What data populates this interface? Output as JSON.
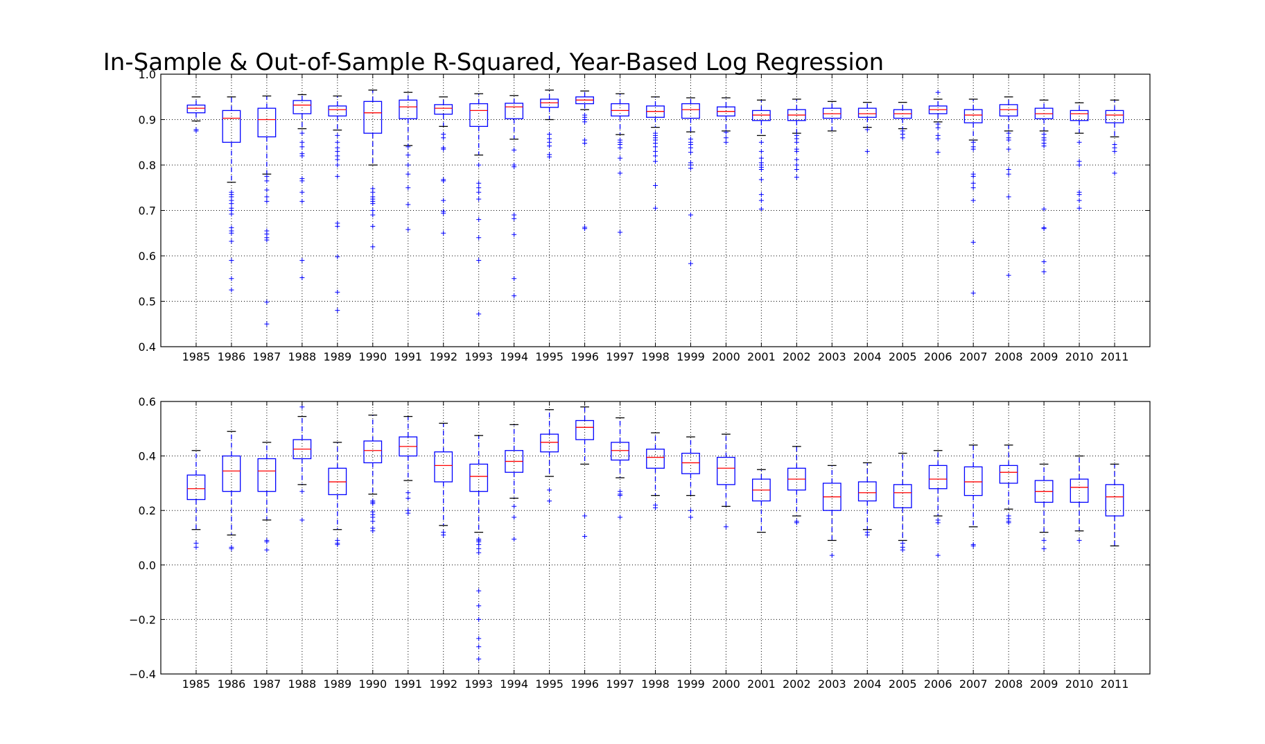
{
  "chart_data": [
    {
      "type": "box",
      "title": "In-Sample & Out-of-Sample R-Squared, Year-Based Log Regression",
      "xlabel": "",
      "ylabel": "",
      "categories": [
        "1985",
        "1986",
        "1987",
        "1988",
        "1989",
        "1990",
        "1991",
        "1992",
        "1993",
        "1994",
        "1995",
        "1996",
        "1997",
        "1998",
        "1999",
        "2000",
        "2001",
        "2002",
        "2003",
        "2004",
        "2005",
        "2006",
        "2007",
        "2008",
        "2009",
        "2010",
        "2011"
      ],
      "ylim": [
        0.4,
        1.0
      ],
      "yticks": [
        0.4,
        0.5,
        0.6,
        0.7,
        0.8,
        0.9,
        1.0
      ],
      "ytick_labels": [
        "0.4",
        "0.5",
        "0.6",
        "0.7",
        "0.8",
        "0.9",
        "1.0"
      ],
      "grid": true,
      "boxes": [
        {
          "whislo": 0.897,
          "q1": 0.915,
          "med": 0.925,
          "q3": 0.932,
          "whishi": 0.95,
          "fliers": [
            0.878,
            0.875
          ]
        },
        {
          "whislo": 0.762,
          "q1": 0.85,
          "med": 0.903,
          "q3": 0.92,
          "whishi": 0.95,
          "fliers": [
            0.74,
            0.735,
            0.73,
            0.722,
            0.715,
            0.705,
            0.7,
            0.692,
            0.662,
            0.655,
            0.65,
            0.632,
            0.59,
            0.55,
            0.525
          ]
        },
        {
          "whislo": 0.78,
          "q1": 0.862,
          "med": 0.9,
          "q3": 0.925,
          "whishi": 0.952,
          "fliers": [
            0.775,
            0.765,
            0.745,
            0.73,
            0.72,
            0.655,
            0.648,
            0.64,
            0.635,
            0.498,
            0.45
          ]
        },
        {
          "whislo": 0.88,
          "q1": 0.913,
          "med": 0.932,
          "q3": 0.942,
          "whishi": 0.955,
          "fliers": [
            0.87,
            0.85,
            0.84,
            0.825,
            0.82,
            0.77,
            0.765,
            0.74,
            0.72,
            0.59,
            0.552
          ]
        },
        {
          "whislo": 0.877,
          "q1": 0.908,
          "med": 0.922,
          "q3": 0.93,
          "whishi": 0.952,
          "fliers": [
            0.865,
            0.85,
            0.838,
            0.83,
            0.82,
            0.812,
            0.8,
            0.775,
            0.672,
            0.665,
            0.598,
            0.52,
            0.48
          ]
        },
        {
          "whislo": 0.8,
          "q1": 0.87,
          "med": 0.915,
          "q3": 0.94,
          "whishi": 0.965,
          "fliers": [
            0.748,
            0.74,
            0.73,
            0.725,
            0.72,
            0.715,
            0.7,
            0.69,
            0.665,
            0.62
          ]
        },
        {
          "whislo": 0.843,
          "q1": 0.902,
          "med": 0.928,
          "q3": 0.943,
          "whishi": 0.96,
          "fliers": [
            0.84,
            0.822,
            0.8,
            0.78,
            0.75,
            0.713,
            0.658
          ]
        },
        {
          "whislo": 0.885,
          "q1": 0.912,
          "med": 0.925,
          "q3": 0.933,
          "whishi": 0.95,
          "fliers": [
            0.868,
            0.86,
            0.838,
            0.835,
            0.768,
            0.765,
            0.722,
            0.698,
            0.694,
            0.65
          ]
        },
        {
          "whislo": 0.822,
          "q1": 0.885,
          "med": 0.92,
          "q3": 0.935,
          "whishi": 0.957,
          "fliers": [
            0.8,
            0.76,
            0.75,
            0.74,
            0.725,
            0.68,
            0.64,
            0.59,
            0.472
          ]
        },
        {
          "whislo": 0.857,
          "q1": 0.902,
          "med": 0.928,
          "q3": 0.936,
          "whishi": 0.953,
          "fliers": [
            0.833,
            0.8,
            0.796,
            0.69,
            0.682,
            0.647,
            0.55,
            0.512
          ]
        },
        {
          "whislo": 0.9,
          "q1": 0.927,
          "med": 0.937,
          "q3": 0.945,
          "whishi": 0.965,
          "fliers": [
            0.868,
            0.858,
            0.85,
            0.842,
            0.823,
            0.818
          ]
        },
        {
          "whislo": 0.922,
          "q1": 0.935,
          "med": 0.943,
          "q3": 0.95,
          "whishi": 0.963,
          "fliers": [
            0.91,
            0.905,
            0.9,
            0.895,
            0.855,
            0.848,
            0.663,
            0.66
          ]
        },
        {
          "whislo": 0.867,
          "q1": 0.908,
          "med": 0.92,
          "q3": 0.935,
          "whishi": 0.957,
          "fliers": [
            0.855,
            0.85,
            0.845,
            0.838,
            0.815,
            0.782,
            0.652
          ]
        },
        {
          "whislo": 0.883,
          "q1": 0.905,
          "med": 0.918,
          "q3": 0.93,
          "whishi": 0.95,
          "fliers": [
            0.87,
            0.865,
            0.86,
            0.855,
            0.848,
            0.84,
            0.83,
            0.82,
            0.808,
            0.755,
            0.705
          ]
        },
        {
          "whislo": 0.873,
          "q1": 0.903,
          "med": 0.922,
          "q3": 0.935,
          "whishi": 0.948,
          "fliers": [
            0.857,
            0.85,
            0.845,
            0.838,
            0.828,
            0.805,
            0.8,
            0.793,
            0.69,
            0.583
          ]
        },
        {
          "whislo": 0.875,
          "q1": 0.908,
          "med": 0.918,
          "q3": 0.928,
          "whishi": 0.948,
          "fliers": [
            0.872,
            0.86,
            0.85
          ]
        },
        {
          "whislo": 0.865,
          "q1": 0.898,
          "med": 0.91,
          "q3": 0.92,
          "whishi": 0.943,
          "fliers": [
            0.85,
            0.83,
            0.815,
            0.805,
            0.8,
            0.795,
            0.79,
            0.768,
            0.735,
            0.722,
            0.703
          ]
        },
        {
          "whislo": 0.87,
          "q1": 0.898,
          "med": 0.91,
          "q3": 0.922,
          "whishi": 0.945,
          "fliers": [
            0.865,
            0.858,
            0.85,
            0.835,
            0.83,
            0.812,
            0.8,
            0.79,
            0.773
          ]
        },
        {
          "whislo": 0.875,
          "q1": 0.903,
          "med": 0.913,
          "q3": 0.925,
          "whishi": 0.94,
          "fliers": []
        },
        {
          "whislo": 0.883,
          "q1": 0.905,
          "med": 0.913,
          "q3": 0.925,
          "whishi": 0.938,
          "fliers": [
            0.878,
            0.83
          ]
        },
        {
          "whislo": 0.88,
          "q1": 0.903,
          "med": 0.913,
          "q3": 0.922,
          "whishi": 0.938,
          "fliers": [
            0.875,
            0.868,
            0.86
          ]
        },
        {
          "whislo": 0.895,
          "q1": 0.913,
          "med": 0.922,
          "q3": 0.93,
          "whishi": 0.945,
          "fliers": [
            0.96,
            0.89,
            0.882,
            0.865,
            0.858,
            0.828
          ]
        },
        {
          "whislo": 0.855,
          "q1": 0.893,
          "med": 0.91,
          "q3": 0.922,
          "whishi": 0.945,
          "fliers": [
            0.85,
            0.84,
            0.835,
            0.78,
            0.775,
            0.76,
            0.75,
            0.722,
            0.63,
            0.518
          ]
        },
        {
          "whislo": 0.875,
          "q1": 0.908,
          "med": 0.922,
          "q3": 0.933,
          "whishi": 0.95,
          "fliers": [
            0.87,
            0.86,
            0.855,
            0.835,
            0.79,
            0.78,
            0.73,
            0.557
          ]
        },
        {
          "whislo": 0.875,
          "q1": 0.902,
          "med": 0.913,
          "q3": 0.925,
          "whishi": 0.943,
          "fliers": [
            0.868,
            0.86,
            0.855,
            0.848,
            0.842,
            0.703,
            0.662,
            0.66,
            0.587,
            0.565
          ]
        },
        {
          "whislo": 0.87,
          "q1": 0.898,
          "med": 0.913,
          "q3": 0.92,
          "whishi": 0.937,
          "fliers": [
            0.85,
            0.808,
            0.8,
            0.74,
            0.735,
            0.722,
            0.705
          ]
        },
        {
          "whislo": 0.862,
          "q1": 0.893,
          "med": 0.91,
          "q3": 0.92,
          "whishi": 0.943,
          "fliers": [
            0.845,
            0.838,
            0.83,
            0.782
          ]
        }
      ]
    },
    {
      "type": "box",
      "title": "",
      "xlabel": "",
      "ylabel": "",
      "categories": [
        "1985",
        "1986",
        "1987",
        "1988",
        "1989",
        "1990",
        "1991",
        "1992",
        "1993",
        "1994",
        "1995",
        "1996",
        "1997",
        "1998",
        "1999",
        "2000",
        "2001",
        "2002",
        "2003",
        "2004",
        "2005",
        "2006",
        "2007",
        "2008",
        "2009",
        "2010",
        "2011"
      ],
      "ylim": [
        -0.4,
        0.6
      ],
      "yticks": [
        -0.4,
        -0.2,
        0.0,
        0.2,
        0.4,
        0.6
      ],
      "ytick_labels": [
        "−0.4",
        "−0.2",
        "0.0",
        "0.2",
        "0.4",
        "0.6"
      ],
      "grid": true,
      "boxes": [
        {
          "whislo": 0.13,
          "q1": 0.24,
          "med": 0.28,
          "q3": 0.33,
          "whishi": 0.42,
          "fliers": [
            0.08,
            0.065
          ]
        },
        {
          "whislo": 0.11,
          "q1": 0.27,
          "med": 0.345,
          "q3": 0.4,
          "whishi": 0.49,
          "fliers": [
            0.065,
            0.06
          ]
        },
        {
          "whislo": 0.165,
          "q1": 0.27,
          "med": 0.345,
          "q3": 0.39,
          "whishi": 0.45,
          "fliers": [
            0.09,
            0.085,
            0.055
          ]
        },
        {
          "whislo": 0.295,
          "q1": 0.39,
          "med": 0.425,
          "q3": 0.46,
          "whishi": 0.545,
          "fliers": [
            0.58,
            0.27,
            0.165
          ]
        },
        {
          "whislo": 0.13,
          "q1": 0.258,
          "med": 0.305,
          "q3": 0.355,
          "whishi": 0.45,
          "fliers": [
            0.09,
            0.08,
            0.075
          ]
        },
        {
          "whislo": 0.26,
          "q1": 0.375,
          "med": 0.42,
          "q3": 0.455,
          "whishi": 0.55,
          "fliers": [
            0.235,
            0.23,
            0.225,
            0.195,
            0.185,
            0.175,
            0.16,
            0.135,
            0.125
          ]
        },
        {
          "whislo": 0.31,
          "q1": 0.4,
          "med": 0.435,
          "q3": 0.47,
          "whishi": 0.545,
          "fliers": [
            0.265,
            0.245,
            0.2,
            0.19
          ]
        },
        {
          "whislo": 0.145,
          "q1": 0.305,
          "med": 0.365,
          "q3": 0.415,
          "whishi": 0.52,
          "fliers": [
            0.12,
            0.11
          ]
        },
        {
          "whislo": 0.12,
          "q1": 0.27,
          "med": 0.325,
          "q3": 0.37,
          "whishi": 0.475,
          "fliers": [
            0.095,
            0.09,
            0.085,
            0.075,
            0.06,
            0.045,
            -0.095,
            -0.15,
            -0.2,
            -0.27,
            -0.3,
            -0.345
          ]
        },
        {
          "whislo": 0.245,
          "q1": 0.34,
          "med": 0.38,
          "q3": 0.42,
          "whishi": 0.515,
          "fliers": [
            0.215,
            0.175,
            0.095
          ]
        },
        {
          "whislo": 0.325,
          "q1": 0.415,
          "med": 0.45,
          "q3": 0.48,
          "whishi": 0.57,
          "fliers": [
            0.275,
            0.235
          ]
        },
        {
          "whislo": 0.37,
          "q1": 0.46,
          "med": 0.505,
          "q3": 0.53,
          "whishi": 0.58,
          "fliers": [
            0.18,
            0.105
          ]
        },
        {
          "whislo": 0.32,
          "q1": 0.385,
          "med": 0.42,
          "q3": 0.45,
          "whishi": 0.54,
          "fliers": [
            0.27,
            0.26,
            0.255,
            0.175
          ]
        },
        {
          "whislo": 0.255,
          "q1": 0.355,
          "med": 0.395,
          "q3": 0.425,
          "whishi": 0.485,
          "fliers": [
            0.22,
            0.21
          ]
        },
        {
          "whislo": 0.255,
          "q1": 0.335,
          "med": 0.375,
          "q3": 0.41,
          "whishi": 0.47,
          "fliers": [
            0.2,
            0.175
          ]
        },
        {
          "whislo": 0.215,
          "q1": 0.295,
          "med": 0.355,
          "q3": 0.395,
          "whishi": 0.48,
          "fliers": [
            0.14
          ]
        },
        {
          "whislo": 0.12,
          "q1": 0.235,
          "med": 0.275,
          "q3": 0.315,
          "whishi": 0.35,
          "fliers": []
        },
        {
          "whislo": 0.18,
          "q1": 0.275,
          "med": 0.315,
          "q3": 0.355,
          "whishi": 0.435,
          "fliers": [
            0.16,
            0.155
          ]
        },
        {
          "whislo": 0.09,
          "q1": 0.2,
          "med": 0.25,
          "q3": 0.3,
          "whishi": 0.365,
          "fliers": [
            0.035
          ]
        },
        {
          "whislo": 0.13,
          "q1": 0.235,
          "med": 0.265,
          "q3": 0.305,
          "whishi": 0.375,
          "fliers": [
            0.12,
            0.11
          ]
        },
        {
          "whislo": 0.09,
          "q1": 0.21,
          "med": 0.265,
          "q3": 0.295,
          "whishi": 0.41,
          "fliers": [
            0.08,
            0.065,
            0.055
          ]
        },
        {
          "whislo": 0.18,
          "q1": 0.28,
          "med": 0.315,
          "q3": 0.365,
          "whishi": 0.42,
          "fliers": [
            0.165,
            0.155,
            0.035
          ]
        },
        {
          "whislo": 0.14,
          "q1": 0.255,
          "med": 0.305,
          "q3": 0.36,
          "whishi": 0.44,
          "fliers": [
            0.075,
            0.07
          ]
        },
        {
          "whislo": 0.205,
          "q1": 0.3,
          "med": 0.34,
          "q3": 0.365,
          "whishi": 0.44,
          "fliers": [
            0.18,
            0.17,
            0.16,
            0.155
          ]
        },
        {
          "whislo": 0.12,
          "q1": 0.23,
          "med": 0.27,
          "q3": 0.31,
          "whishi": 0.37,
          "fliers": [
            0.09,
            0.06
          ]
        },
        {
          "whislo": 0.125,
          "q1": 0.23,
          "med": 0.285,
          "q3": 0.315,
          "whishi": 0.4,
          "fliers": [
            0.09
          ]
        },
        {
          "whislo": 0.07,
          "q1": 0.18,
          "med": 0.25,
          "q3": 0.295,
          "whishi": 0.37,
          "fliers": []
        }
      ]
    }
  ],
  "colors": {
    "box": "#0000ff",
    "median": "#ff0000",
    "cap": "#000000",
    "flier": "#0000ff",
    "grid": "#000000"
  }
}
